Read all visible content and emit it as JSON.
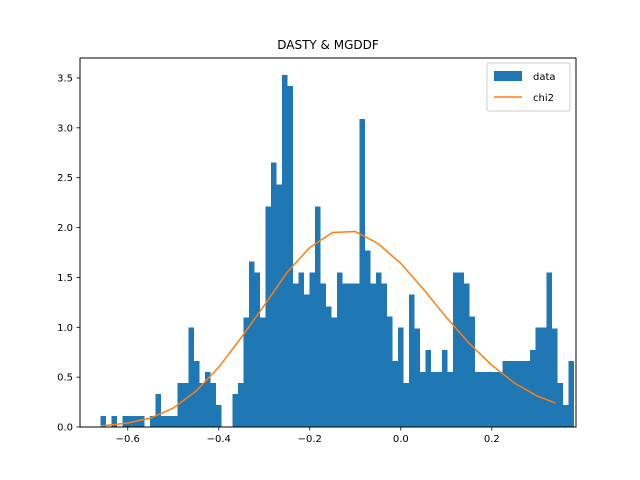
{
  "chart_data": {
    "type": "bar",
    "title": "DASTY & MGDDF",
    "xlabel": "",
    "ylabel": "",
    "xlim": [
      -0.705,
      0.385
    ],
    "ylim": [
      0,
      3.7
    ],
    "xticks": [
      -0.6,
      -0.4,
      -0.2,
      0.0,
      0.2
    ],
    "xtick_labels": [
      "−0.6",
      "−0.4",
      "−0.2",
      "0.0",
      "0.2"
    ],
    "yticks": [
      0.0,
      0.5,
      1.0,
      1.5,
      2.0,
      2.5,
      3.0,
      3.5
    ],
    "ytick_labels": [
      "0.0",
      "0.5",
      "1.0",
      "1.5",
      "2.0",
      "2.5",
      "3.0",
      "3.5"
    ],
    "legend": {
      "location": "upper right",
      "entries": [
        "data",
        "chi2"
      ]
    },
    "colors": {
      "data": "#1f77b4",
      "chi2": "#ff7f0e"
    },
    "histogram": {
      "name": "data",
      "bin_start": -0.66,
      "bin_width": 0.0121,
      "values": [
        0.11,
        0,
        0.11,
        0,
        0.11,
        0.11,
        0.11,
        0.11,
        0,
        0.11,
        0.33,
        0.11,
        0.11,
        0.11,
        0.44,
        0.44,
        1.0,
        0.66,
        0.44,
        0.55,
        0.44,
        0.22,
        0,
        0,
        0.33,
        0.44,
        1.1,
        1.66,
        1.55,
        1.1,
        2.21,
        2.65,
        2.43,
        3.53,
        3.42,
        1.44,
        1.55,
        1.33,
        1.55,
        2.21,
        1.44,
        1.21,
        1.1,
        1.55,
        1.44,
        1.44,
        1.44,
        3.09,
        1.77,
        1.44,
        1.55,
        1.44,
        1.11,
        0.66,
        1.0,
        0.44,
        1.33,
        0.99,
        0.55,
        0.77,
        0.55,
        0.55,
        0.77,
        0.55,
        1.55,
        1.55,
        1.44,
        1.11,
        0.55,
        0.55,
        0.55,
        0.55,
        0.55,
        0.66,
        0.66,
        0.66,
        0.66,
        0.66,
        0.77,
        1.0,
        1.0,
        1.55,
        0.99,
        0.44,
        0.22,
        0.66
      ]
    },
    "series": [
      {
        "name": "chi2",
        "type": "line",
        "x": [
          -0.66,
          -0.6,
          -0.55,
          -0.5,
          -0.45,
          -0.4,
          -0.35,
          -0.3,
          -0.25,
          -0.2,
          -0.15,
          -0.1,
          -0.05,
          0.0,
          0.05,
          0.1,
          0.15,
          0.2,
          0.25,
          0.3,
          0.34
        ],
        "y": [
          0.01,
          0.04,
          0.09,
          0.19,
          0.36,
          0.6,
          0.9,
          1.22,
          1.55,
          1.8,
          1.95,
          1.96,
          1.84,
          1.64,
          1.38,
          1.1,
          0.84,
          0.62,
          0.44,
          0.31,
          0.24
        ]
      }
    ]
  }
}
